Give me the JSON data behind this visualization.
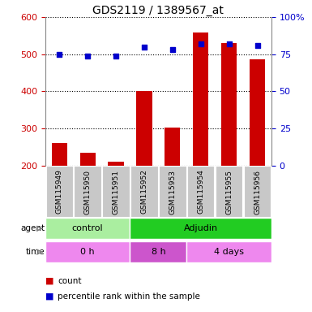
{
  "title": "GDS2119 / 1389567_at",
  "samples": [
    "GSM115949",
    "GSM115950",
    "GSM115951",
    "GSM115952",
    "GSM115953",
    "GSM115954",
    "GSM115955",
    "GSM115956"
  ],
  "counts": [
    260,
    235,
    210,
    400,
    302,
    558,
    530,
    487
  ],
  "percentile_ranks": [
    75,
    74,
    74,
    80,
    78,
    82,
    82,
    81
  ],
  "ylim_left": [
    200,
    600
  ],
  "yticks_left": [
    200,
    300,
    400,
    500,
    600
  ],
  "ylim_right": [
    0,
    100
  ],
  "yticks_right": [
    0,
    25,
    50,
    75,
    100
  ],
  "bar_color": "#cc0000",
  "dot_color": "#0000cc",
  "agent_groups": [
    {
      "label": "control",
      "start": 0,
      "end": 3,
      "color": "#aaeea0"
    },
    {
      "label": "Adjudin",
      "start": 3,
      "end": 8,
      "color": "#22cc22"
    }
  ],
  "time_groups": [
    {
      "label": "0 h",
      "start": 0,
      "end": 3,
      "color": "#ee88ee"
    },
    {
      "label": "8 h",
      "start": 3,
      "end": 5,
      "color": "#cc55cc"
    },
    {
      "label": "4 days",
      "start": 5,
      "end": 8,
      "color": "#ee88ee"
    }
  ],
  "tick_label_color_left": "#cc0000",
  "tick_label_color_right": "#0000cc",
  "label_box_color": "#c8c8c8",
  "legend_count_color": "#cc0000",
  "legend_dot_color": "#0000cc"
}
